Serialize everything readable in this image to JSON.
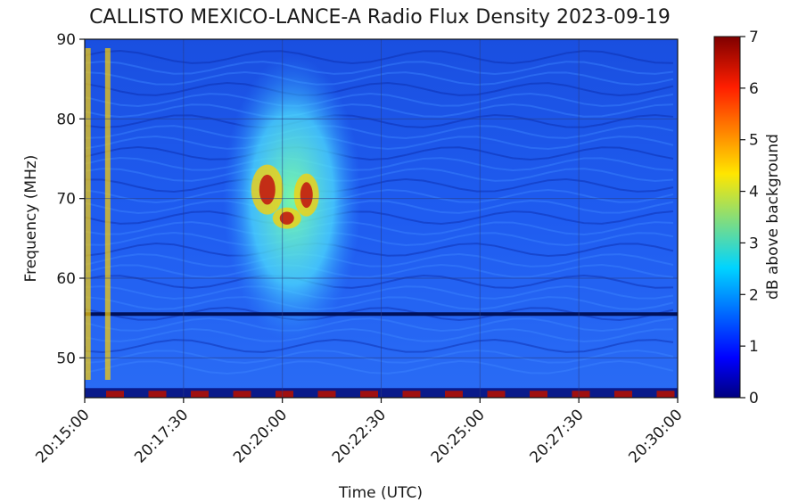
{
  "chart_data": {
    "type": "heatmap",
    "title": "CALLISTO MEXICO-LANCE-A Radio Flux Density 2023-09-19",
    "xlabel": "Time (UTC)",
    "ylabel": "Frequency (MHz)",
    "x_ticks": [
      "20:15:00",
      "20:17:30",
      "20:20:00",
      "20:22:30",
      "20:25:00",
      "20:27:30",
      "20:30:00"
    ],
    "x_range": [
      "20:15:00",
      "20:30:00"
    ],
    "y_ticks": [
      50,
      60,
      70,
      80,
      90
    ],
    "ylim": [
      45,
      90
    ],
    "colorbar": {
      "label": "dB above background",
      "ticks": [
        0,
        1,
        2,
        3,
        4,
        5,
        6,
        7
      ],
      "range": [
        0,
        7
      ],
      "colormap": "jet"
    },
    "grid": true,
    "features": [
      {
        "description": "burst",
        "time_start": "20:18:30",
        "time_end": "20:22:00",
        "freq_low": 52,
        "freq_high": 88,
        "peak_db": 7
      },
      {
        "description": "narrowband interference line",
        "freq": 55.5,
        "time_start": "20:15:00",
        "time_end": "20:30:00"
      },
      {
        "description": "broadband vertical stripes",
        "times": [
          "20:15:05",
          "20:15:35"
        ],
        "db": 5
      }
    ]
  }
}
